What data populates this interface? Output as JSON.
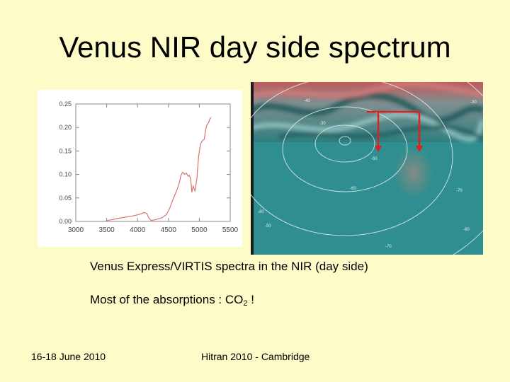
{
  "slide": {
    "title": "Venus NIR day side spectrum",
    "caption": "Venus Express/VIRTIS spectra in the NIR (day side)",
    "note_prefix": "Most of the absorptions : CO",
    "note_subscript": "2",
    "note_suffix": " !",
    "footer_left": "16-18 June 2010",
    "footer_center": "Hitran 2010 - Cambridge"
  },
  "chart_data": {
    "type": "line",
    "title": "",
    "xlabel": "",
    "ylabel": "",
    "xlim": [
      3000,
      5500
    ],
    "ylim": [
      0,
      0.25
    ],
    "x_ticks": [
      "3000",
      "3500",
      "4000",
      "4500",
      "5000",
      "5500"
    ],
    "y_ticks": [
      "0.00",
      "0.05",
      "0.10",
      "0.15",
      "0.20",
      "0.25"
    ],
    "grid": false,
    "series": [
      {
        "color": "#d9736e",
        "x": [
          3500,
          3600,
          3700,
          3800,
          3900,
          4000,
          4050,
          4100,
          4150,
          4180,
          4220,
          4300,
          4400,
          4470,
          4520,
          4560,
          4600,
          4640,
          4680,
          4700,
          4730,
          4760,
          4790,
          4820,
          4840,
          4860,
          4880,
          4900,
          4930,
          4960,
          4990,
          5020,
          5050,
          5080,
          5100,
          5120,
          5150,
          5170,
          5190
        ],
        "y": [
          0.002,
          0.004,
          0.007,
          0.009,
          0.011,
          0.014,
          0.016,
          0.019,
          0.017,
          0.008,
          0.002,
          0.004,
          0.008,
          0.015,
          0.028,
          0.042,
          0.055,
          0.068,
          0.084,
          0.097,
          0.105,
          0.1,
          0.103,
          0.096,
          0.098,
          0.09,
          0.062,
          0.075,
          0.065,
          0.09,
          0.14,
          0.165,
          0.172,
          0.175,
          0.193,
          0.205,
          0.21,
          0.218,
          0.222
        ]
      }
    ]
  },
  "map": {
    "contour_labels": [
      "-30",
      "-50",
      "-60",
      "-70",
      "-80",
      "-30",
      "-40",
      "-50",
      "-60",
      "-70"
    ],
    "marker_color": "#e02020"
  }
}
